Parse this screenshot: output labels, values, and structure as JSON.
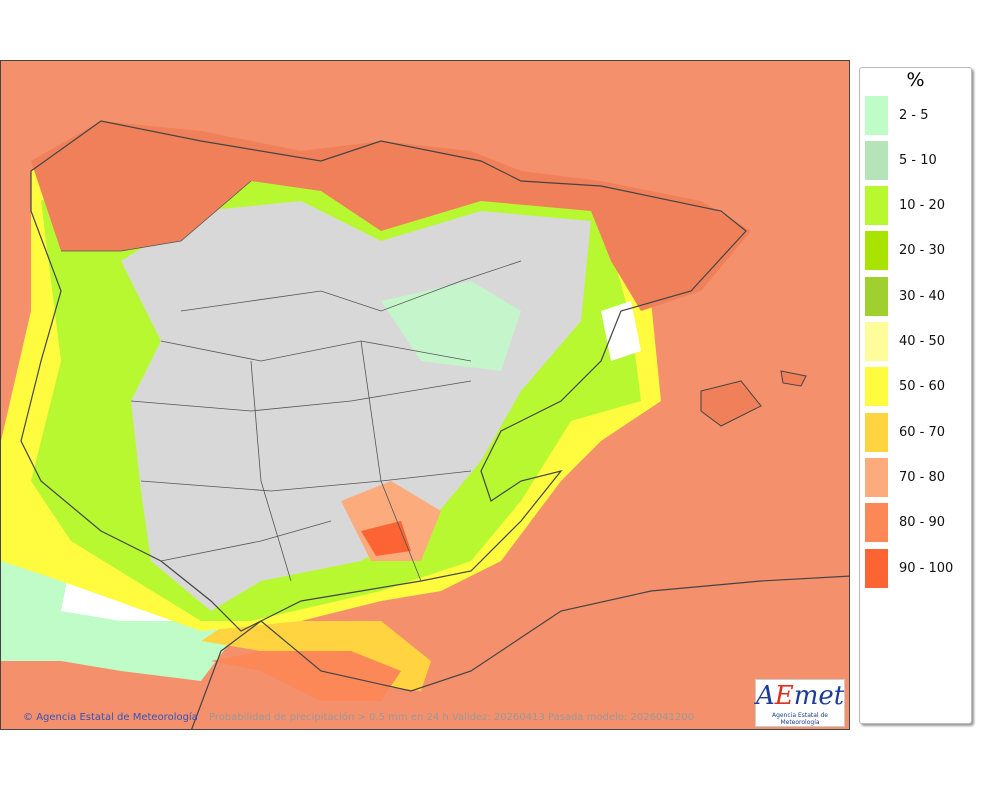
{
  "map": {
    "caption_org": "Agencia Estatal de Meteorología",
    "caption_info": "Probabilidad de precipitación > 0.5 mm en 24 h Validez: 20260413 Pasada modelo: 2026041200",
    "copyright_icon": "copyright-icon",
    "logo_text": "AEmet",
    "logo_subtext": "Agencia Estatal de Meteorología",
    "sea_color": "#f5906c"
  },
  "legend": {
    "title": "%",
    "items": [
      {
        "label": "2 - 5",
        "color": "#c0fcc8"
      },
      {
        "label": "5 - 10",
        "color": "#b4e4b8"
      },
      {
        "label": "10 - 20",
        "color": "#b8f830"
      },
      {
        "label": "20 - 30",
        "color": "#a8e400"
      },
      {
        "label": "30 - 40",
        "color": "#a0d030"
      },
      {
        "label": "40 - 50",
        "color": "#fffc9c"
      },
      {
        "label": "50 - 60",
        "color": "#fffc40"
      },
      {
        "label": "60 - 70",
        "color": "#ffd440"
      },
      {
        "label": "70 - 80",
        "color": "#fcac7c"
      },
      {
        "label": "80 - 90",
        "color": "#fc8858"
      },
      {
        "label": "90 - 100",
        "color": "#fc6434"
      }
    ]
  }
}
